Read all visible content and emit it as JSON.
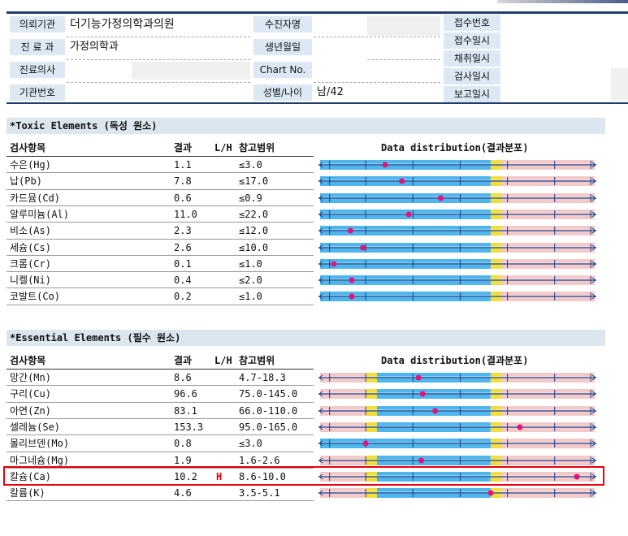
{
  "header": {
    "institution_label": "의뢰기관",
    "institution_value": "더기능가정의학과의원",
    "dept_label": "진 료 과",
    "dept_value": "가정의학과",
    "doctor_label": "진료의사",
    "orgno_label": "기관번호",
    "recipient_label": "수진자명",
    "birth_label": "생년월일",
    "chart_label": "Chart No.",
    "sexage_label": "성별/나이",
    "sexage_value": "남/42",
    "receipt_no_label": "접수번호",
    "receipt_date_label": "접수일시",
    "collection_date_label": "채취일시",
    "test_date_label": "검사일시",
    "report_date_label": "보고일시"
  },
  "columns": {
    "item": "검사항목",
    "result": "결과",
    "lh": "L/H",
    "ref": "참고범위",
    "dist": "Data distribution(결과분포)"
  },
  "toxic": {
    "title": "*Toxic Elements (독성 원소)",
    "rows": [
      {
        "name": "수은(Hg)",
        "result": "1.1",
        "flag": "",
        "ref": "≤3.0",
        "pos": 0.24
      },
      {
        "name": "납(Pb)",
        "result": "7.8",
        "flag": "",
        "ref": "≤17.0",
        "pos": 0.3
      },
      {
        "name": "카드뮴(Cd)",
        "result": "0.6",
        "flag": "",
        "ref": "≤0.9",
        "pos": 0.44
      },
      {
        "name": "알루미늄(Al)",
        "result": "11.0",
        "flag": "",
        "ref": "≤22.0",
        "pos": 0.325
      },
      {
        "name": "비소(As)",
        "result": "2.3",
        "flag": "",
        "ref": "≤12.0",
        "pos": 0.115
      },
      {
        "name": "세슘(Cs)",
        "result": "2.6",
        "flag": "",
        "ref": "≤10.0",
        "pos": 0.16
      },
      {
        "name": "크롬(Cr)",
        "result": "0.1",
        "flag": "",
        "ref": "≤1.0",
        "pos": 0.055
      },
      {
        "name": "니켈(Ni)",
        "result": "0.4",
        "flag": "",
        "ref": "≤2.0",
        "pos": 0.12
      },
      {
        "name": "코발트(Co)",
        "result": "0.2",
        "flag": "",
        "ref": "≤1.0",
        "pos": 0.12
      }
    ]
  },
  "essential": {
    "title": "*Essential Elements (필수 원소)",
    "rows": [
      {
        "name": "망간(Mn)",
        "result": "8.6",
        "flag": "",
        "ref": "4.7-18.3",
        "pos": 0.36,
        "lowzone": true
      },
      {
        "name": "구리(Cu)",
        "result": "96.6",
        "flag": "",
        "ref": "75.0-145.0",
        "pos": 0.375,
        "lowzone": true
      },
      {
        "name": "아연(Zn)",
        "result": "83.1",
        "flag": "",
        "ref": "66.0-110.0",
        "pos": 0.42,
        "lowzone": true
      },
      {
        "name": "셀레늄(Se)",
        "result": "153.3",
        "flag": "",
        "ref": "95.0-165.0",
        "pos": 0.725,
        "lowzone": true
      },
      {
        "name": "몰리브덴(Mo)",
        "result": "0.8",
        "flag": "",
        "ref": "≤3.0",
        "pos": 0.17,
        "lowzone": false
      },
      {
        "name": "마그네슘(Mg)",
        "result": "1.9",
        "flag": "",
        "ref": "1.6-2.6",
        "pos": 0.37,
        "lowzone": true
      },
      {
        "name": "칼슘(Ca)",
        "result": "10.2",
        "flag": "H",
        "ref": "8.6-10.0",
        "pos": 0.93,
        "lowzone": true
      },
      {
        "name": "칼륨(K)",
        "result": "4.6",
        "flag": "",
        "ref": "3.5-5.1",
        "pos": 0.62,
        "lowzone": true
      }
    ]
  }
}
